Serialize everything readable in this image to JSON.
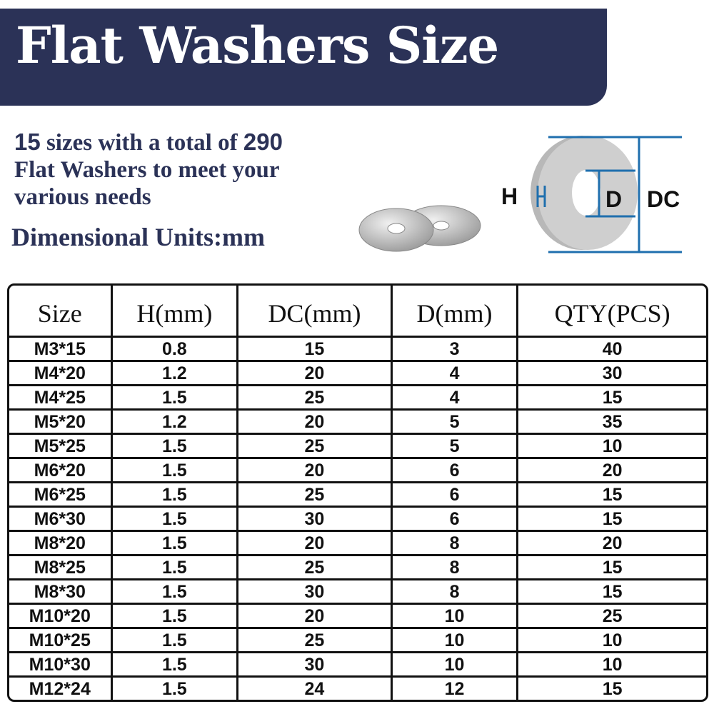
{
  "banner": {
    "title": "Flat Washers Size",
    "color": "#2b3257"
  },
  "intro": {
    "count": "15",
    "text1": " sizes with a total of ",
    "total": "290",
    "text2": "Flat Washers to meet your",
    "text3": "various needs"
  },
  "units": "Dimensional Units:mm",
  "diagram": {
    "h_label": "H",
    "d_label": "D",
    "dc_label": "DC",
    "line_color": "#1f6fae"
  },
  "table": {
    "headers": [
      "Size",
      "H(mm)",
      "DC(mm)",
      "D(mm)",
      "QTY(PCS)"
    ],
    "rows": [
      [
        "M3*15",
        "0.8",
        "15",
        "3",
        "40"
      ],
      [
        "M4*20",
        "1.2",
        "20",
        "4",
        "30"
      ],
      [
        "M4*25",
        "1.5",
        "25",
        "4",
        "15"
      ],
      [
        "M5*20",
        "1.2",
        "20",
        "5",
        "35"
      ],
      [
        "M5*25",
        "1.5",
        "25",
        "5",
        "10"
      ],
      [
        "M6*20",
        "1.5",
        "20",
        "6",
        "20"
      ],
      [
        "M6*25",
        "1.5",
        "25",
        "6",
        "15"
      ],
      [
        "M6*30",
        "1.5",
        "30",
        "6",
        "15"
      ],
      [
        "M8*20",
        "1.5",
        "20",
        "8",
        "20"
      ],
      [
        "M8*25",
        "1.5",
        "25",
        "8",
        "15"
      ],
      [
        "M8*30",
        "1.5",
        "30",
        "8",
        "15"
      ],
      [
        "M10*20",
        "1.5",
        "20",
        "10",
        "25"
      ],
      [
        "M10*25",
        "1.5",
        "25",
        "10",
        "10"
      ],
      [
        "M10*30",
        "1.5",
        "30",
        "10",
        "10"
      ],
      [
        "M12*24",
        "1.5",
        "24",
        "12",
        "15"
      ]
    ]
  }
}
